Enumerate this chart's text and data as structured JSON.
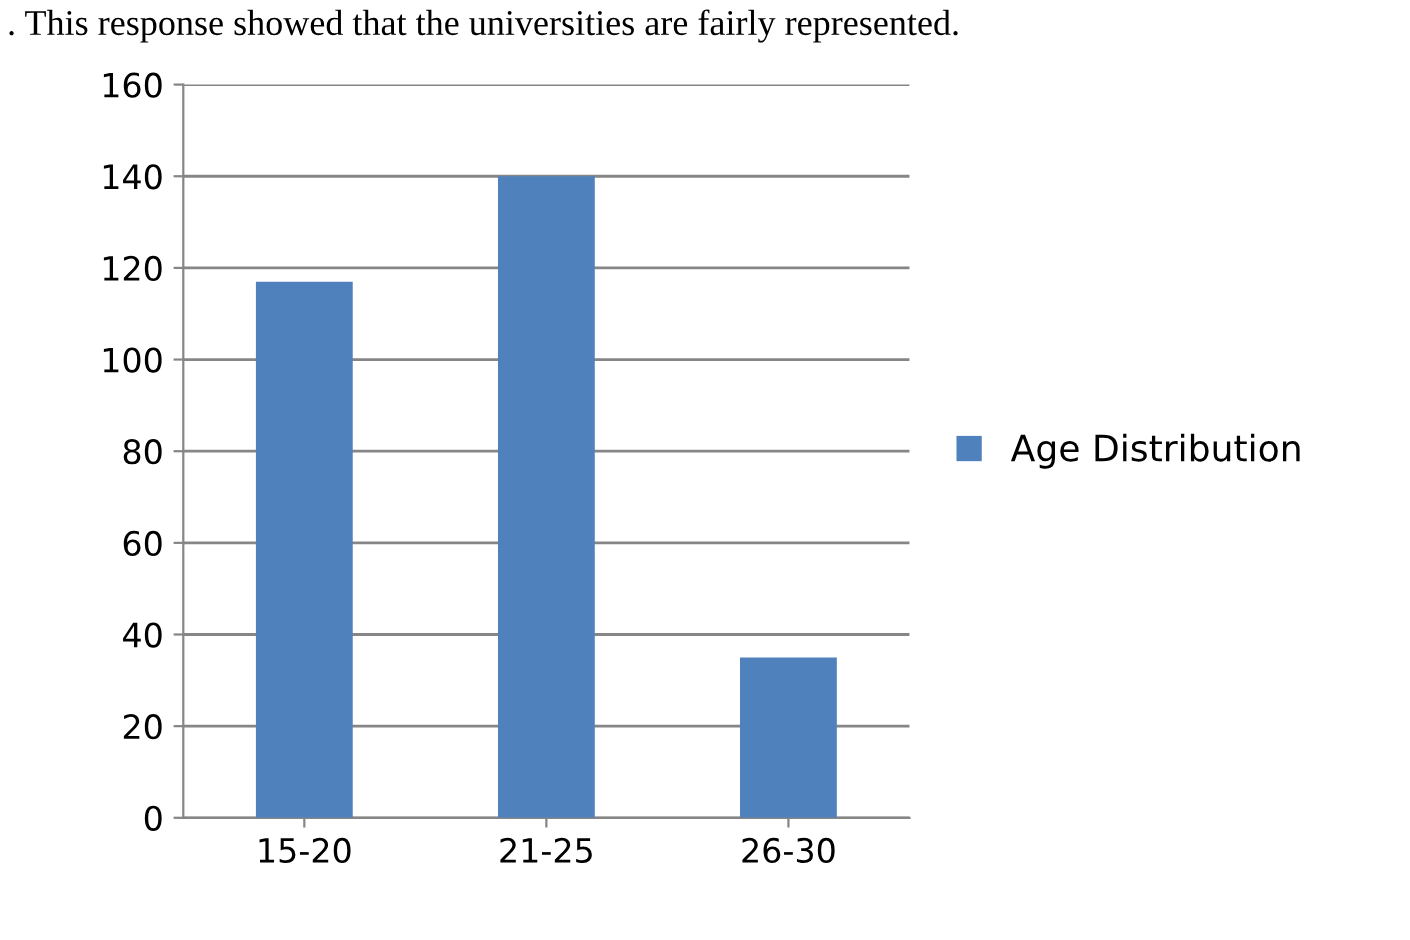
{
  "chart_data": {
    "type": "bar",
    "categories": [
      "15-20",
      "21-25",
      "26-30"
    ],
    "series": [
      {
        "name": "Age Distribution",
        "color": "#4f81bd",
        "values": [
          117,
          140,
          35
        ]
      }
    ],
    "ylim": [
      0,
      160
    ],
    "yticks": [
      0,
      20,
      40,
      60,
      80,
      100,
      120,
      140,
      160
    ],
    "grid": "y",
    "legend": "right",
    "annotations": [
      ". This response showed that the universities are fairly represented."
    ]
  }
}
